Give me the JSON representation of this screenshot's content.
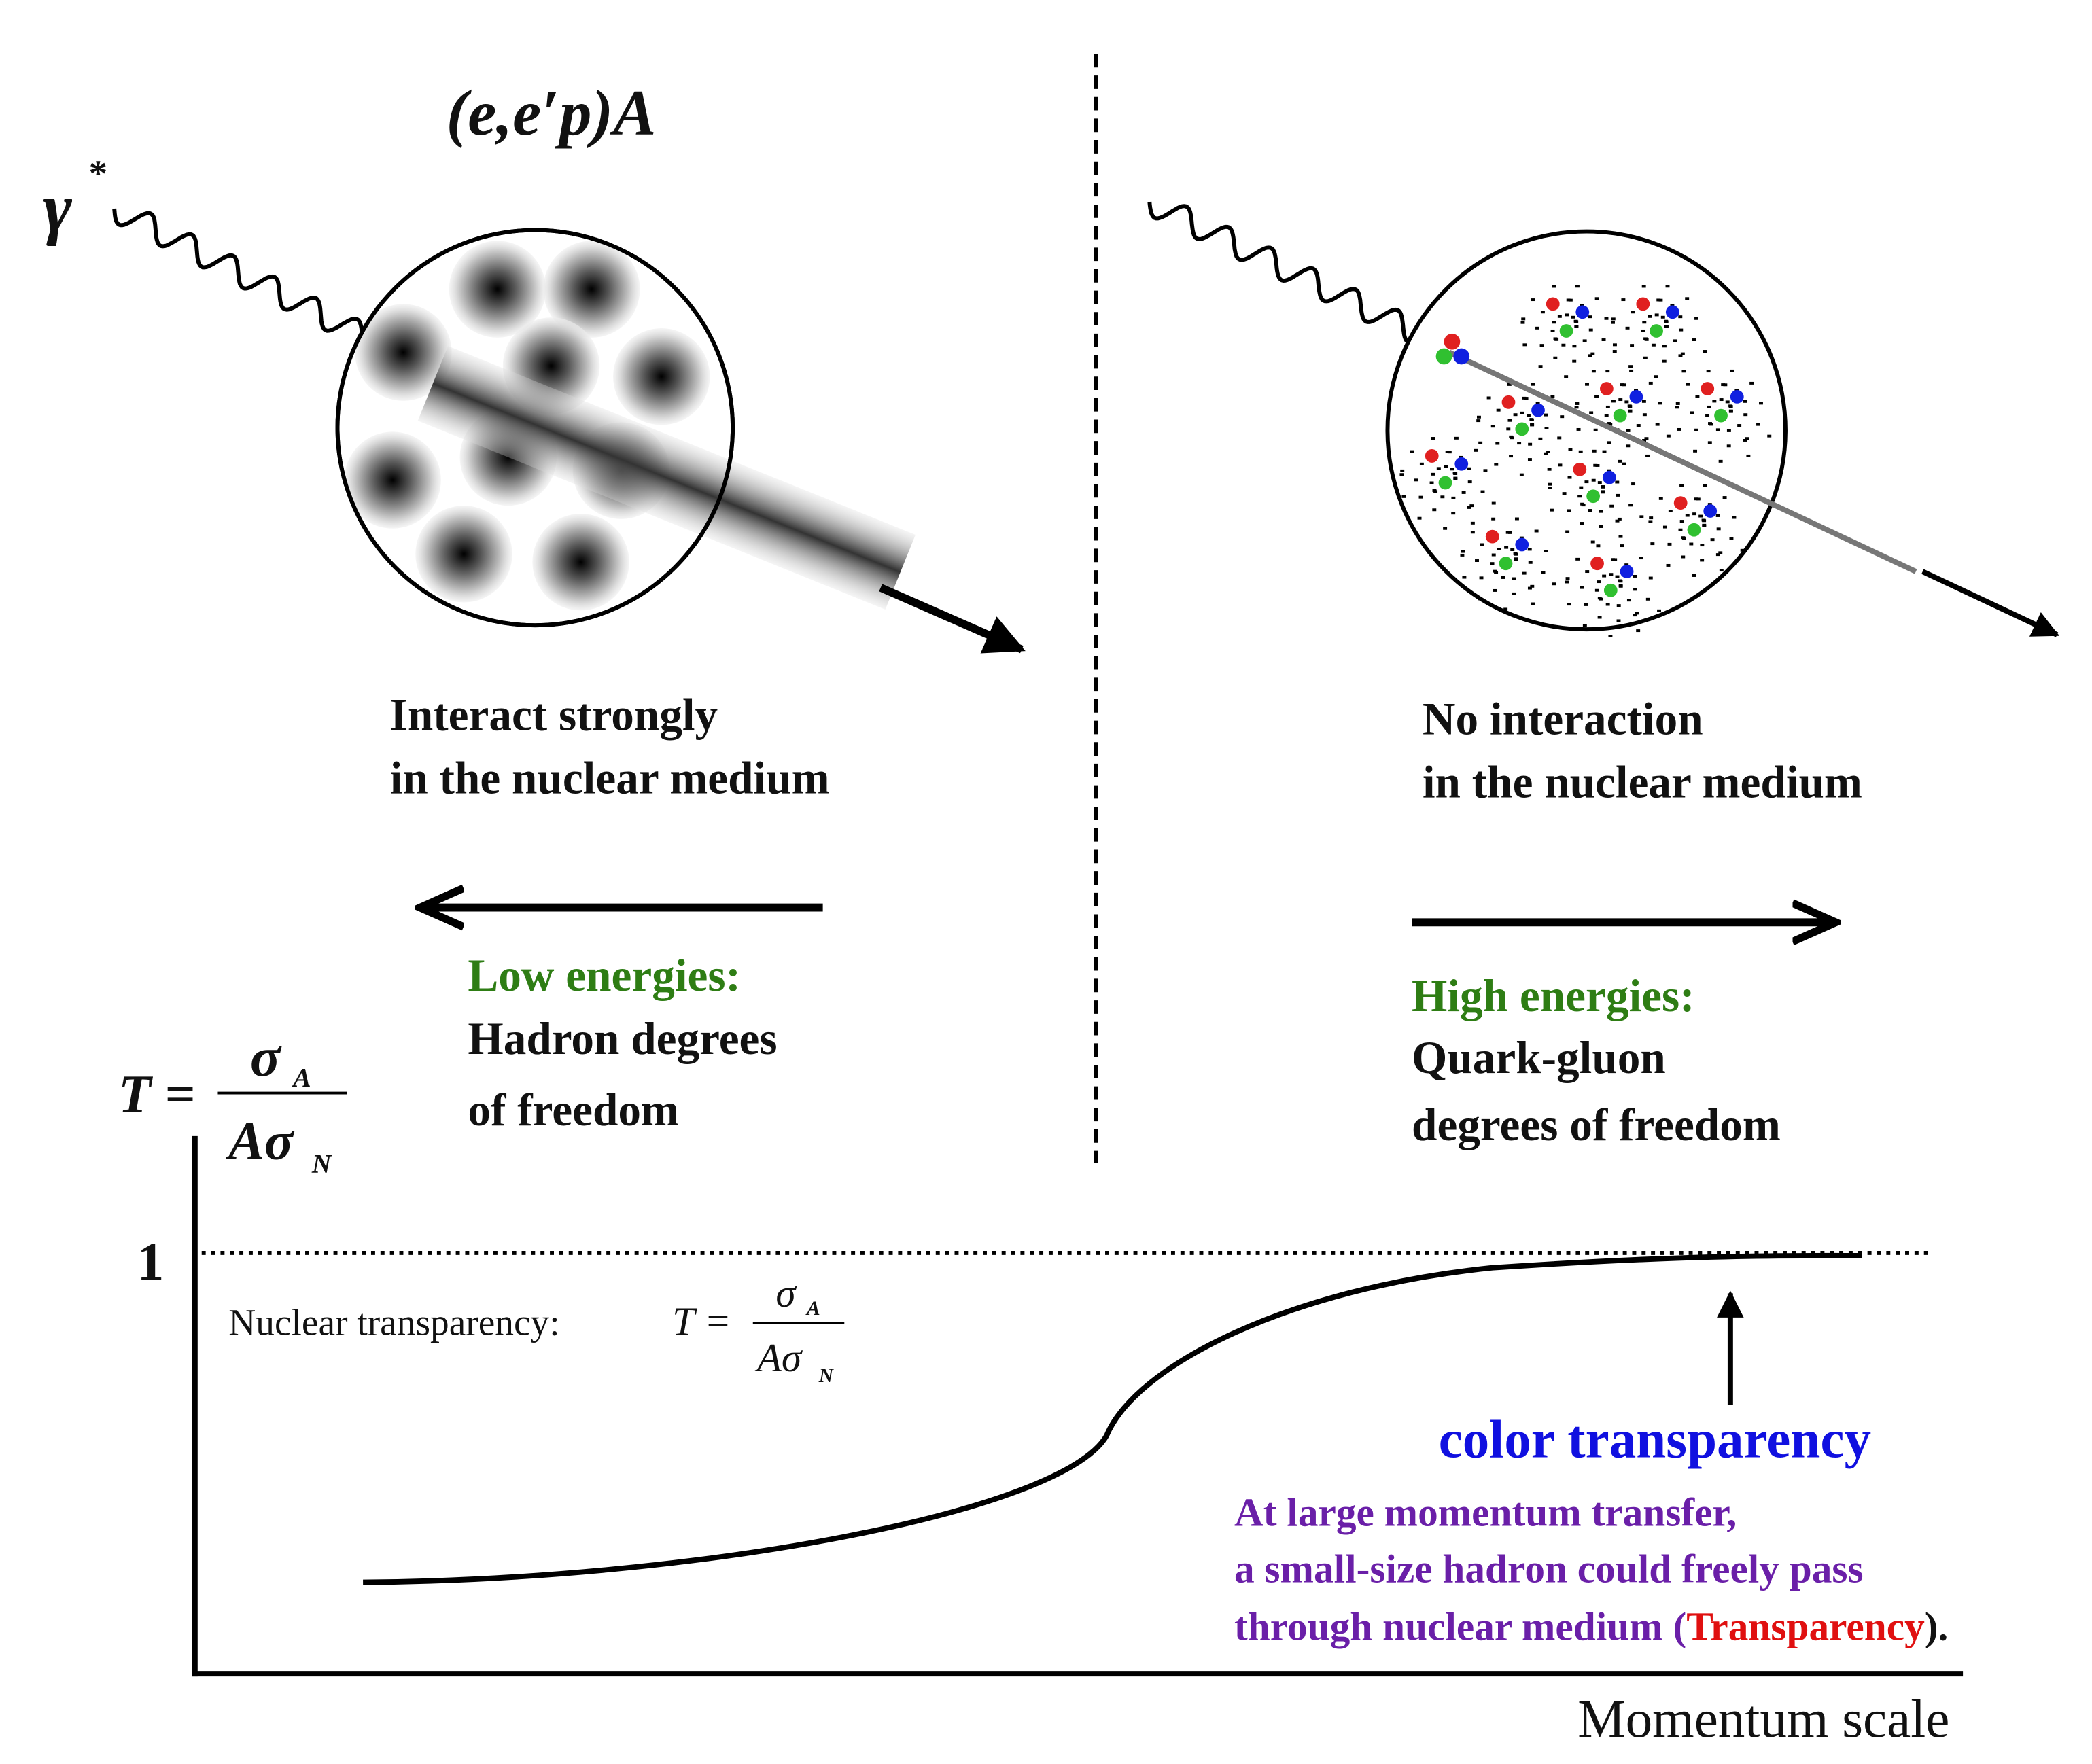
{
  "left_panel": {
    "reaction": "(e,e′p)A",
    "photon_symbol": "γ",
    "photon_superscript": "*",
    "caption": [
      "Interact strongly",
      "in the nuclear medium"
    ],
    "energy_title": "Low energies:",
    "energy_text": [
      "Hadron degrees",
      "of freedom"
    ]
  },
  "right_panel": {
    "caption": [
      "No interaction",
      "in the nuclear medium"
    ],
    "energy_title": "High energies:",
    "energy_text": [
      "Quark-gluon",
      "degrees of freedom"
    ]
  },
  "plot": {
    "axis_formula": {
      "lhs": "T =",
      "numerator": "σ",
      "numerator_sub": "A",
      "denominator": "Aσ",
      "denominator_sub": "N"
    },
    "unity_label": 1,
    "definition": {
      "label": "Nuclear transparency:",
      "lhs": "T =",
      "numerator": "σ",
      "numerator_sub": "A",
      "denominator": "Aσ",
      "denominator_sub": "N"
    },
    "annotation_title": "color transparency",
    "annotation_text": [
      "At large momentum transfer,",
      "a small-size hadron could freely pass",
      "through nuclear medium (",
      "Transparency",
      ")."
    ],
    "x_label": "Momentum scale"
  }
}
